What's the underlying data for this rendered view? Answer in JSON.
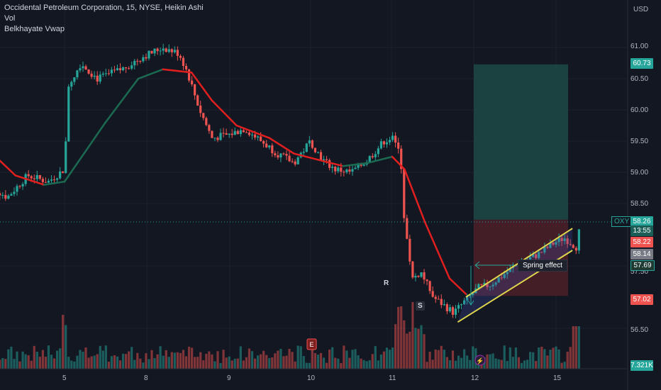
{
  "header": {
    "title_line": "Occidental Petroleum Corporation, 15, NYSE, Heikin Ashi",
    "vol_label": "Vol",
    "indicator_label": "Belkhayate Vwap"
  },
  "axis": {
    "currency": "USD",
    "y_ticks": [
      "61.00",
      "60.50",
      "60.00",
      "59.50",
      "59.00",
      "58.50",
      "57.50",
      "56.50"
    ],
    "x_ticks": [
      "5",
      "8",
      "9",
      "10",
      "11",
      "12",
      "15"
    ]
  },
  "price_tags": {
    "target": "60.73",
    "symbol": "OXY",
    "last": "58.26",
    "countdown": "13:55",
    "red_level": "58.22",
    "gray_level": "58.14",
    "green_level": "57.69",
    "stop": "57.02",
    "volume": "7.321K"
  },
  "annotations": {
    "r_label": "R",
    "s_label": "S",
    "spring_text": "Spring effect",
    "earnings_label": "E"
  },
  "colors": {
    "background": "#131722",
    "up": "#26a69a",
    "down": "#ef5350",
    "vwap_down": "#e21f1f",
    "vwap_up": "#1b6b52",
    "channel": "#f5ea3f",
    "target_zone": "#1d4a45",
    "stop_zone": "#4a1f28"
  },
  "chart_data": {
    "type": "candlestick",
    "title": "Occidental Petroleum Corporation, 15, NYSE, Heikin Ashi",
    "x_ticks": [
      "5",
      "8",
      "9",
      "10",
      "11",
      "12",
      "15"
    ],
    "y_range": [
      56.2,
      61.5
    ],
    "last_price": 58.26,
    "target": 60.73,
    "stop": 57.02,
    "close_path": [
      {
        "d": 4.0,
        "p": 58.85
      },
      {
        "d": 4.3,
        "p": 58.6
      },
      {
        "d": 4.55,
        "p": 58.95
      },
      {
        "d": 4.8,
        "p": 58.85
      },
      {
        "d": 5.0,
        "p": 59.05
      },
      {
        "d": 5.05,
        "p": 60.4
      },
      {
        "d": 5.2,
        "p": 60.75
      },
      {
        "d": 5.4,
        "p": 60.5
      },
      {
        "d": 5.7,
        "p": 60.65
      },
      {
        "d": 5.95,
        "p": 60.85
      },
      {
        "d": 6.2,
        "p": 61.0
      },
      {
        "d": 6.4,
        "p": 60.9
      },
      {
        "d": 6.5,
        "p": 60.6
      },
      {
        "d": 6.65,
        "p": 60.0
      },
      {
        "d": 6.8,
        "p": 59.55
      },
      {
        "d": 7.0,
        "p": 59.6
      },
      {
        "d": 7.2,
        "p": 59.7
      },
      {
        "d": 7.4,
        "p": 59.5
      },
      {
        "d": 7.6,
        "p": 59.3
      },
      {
        "d": 7.8,
        "p": 59.15
      },
      {
        "d": 8.0,
        "p": 59.5
      },
      {
        "d": 8.15,
        "p": 59.2
      },
      {
        "d": 8.3,
        "p": 59.05
      },
      {
        "d": 8.5,
        "p": 59.0
      },
      {
        "d": 8.7,
        "p": 59.2
      },
      {
        "d": 8.9,
        "p": 59.5
      },
      {
        "d": 9.0,
        "p": 59.55
      },
      {
        "d": 9.1,
        "p": 59.3
      },
      {
        "d": 9.15,
        "p": 58.2
      },
      {
        "d": 9.25,
        "p": 57.3
      },
      {
        "d": 9.35,
        "p": 57.4
      },
      {
        "d": 9.5,
        "p": 57.0
      },
      {
        "d": 9.65,
        "p": 56.85
      },
      {
        "d": 9.75,
        "p": 56.75
      },
      {
        "d": 9.9,
        "p": 56.95
      },
      {
        "d": 10.05,
        "p": 57.15
      },
      {
        "d": 10.2,
        "p": 57.2
      },
      {
        "d": 10.35,
        "p": 57.35
      },
      {
        "d": 10.5,
        "p": 57.5
      },
      {
        "d": 10.65,
        "p": 57.6
      },
      {
        "d": 10.8,
        "p": 57.7
      },
      {
        "d": 10.95,
        "p": 57.85
      },
      {
        "d": 11.1,
        "p": 57.95
      },
      {
        "d": 11.25,
        "p": 57.8
      },
      {
        "d": 11.3,
        "p": 58.2
      }
    ],
    "vwap_path": [
      {
        "d": 4.0,
        "p": 59.45
      },
      {
        "d": 4.4,
        "p": 58.95
      },
      {
        "d": 4.75,
        "p": 58.8
      },
      {
        "d": 5.0,
        "p": 58.85
      },
      {
        "d": 5.5,
        "p": 59.8
      },
      {
        "d": 5.9,
        "p": 60.5
      },
      {
        "d": 6.2,
        "p": 60.65
      },
      {
        "d": 6.55,
        "p": 60.6
      },
      {
        "d": 6.8,
        "p": 60.15
      },
      {
        "d": 7.1,
        "p": 59.75
      },
      {
        "d": 7.5,
        "p": 59.55
      },
      {
        "d": 7.8,
        "p": 59.3
      },
      {
        "d": 8.1,
        "p": 59.2
      },
      {
        "d": 8.4,
        "p": 59.1
      },
      {
        "d": 8.7,
        "p": 59.15
      },
      {
        "d": 9.0,
        "p": 59.25
      },
      {
        "d": 9.15,
        "p": 59.05
      },
      {
        "d": 9.4,
        "p": 58.2
      },
      {
        "d": 9.7,
        "p": 57.3
      },
      {
        "d": 9.9,
        "p": 57.05
      }
    ],
    "channel_upper": [
      {
        "d": 9.9,
        "p": 57.0
      },
      {
        "d": 11.2,
        "p": 58.1
      }
    ],
    "channel_lower": [
      {
        "d": 9.8,
        "p": 56.6
      },
      {
        "d": 11.2,
        "p": 57.75
      }
    ]
  }
}
